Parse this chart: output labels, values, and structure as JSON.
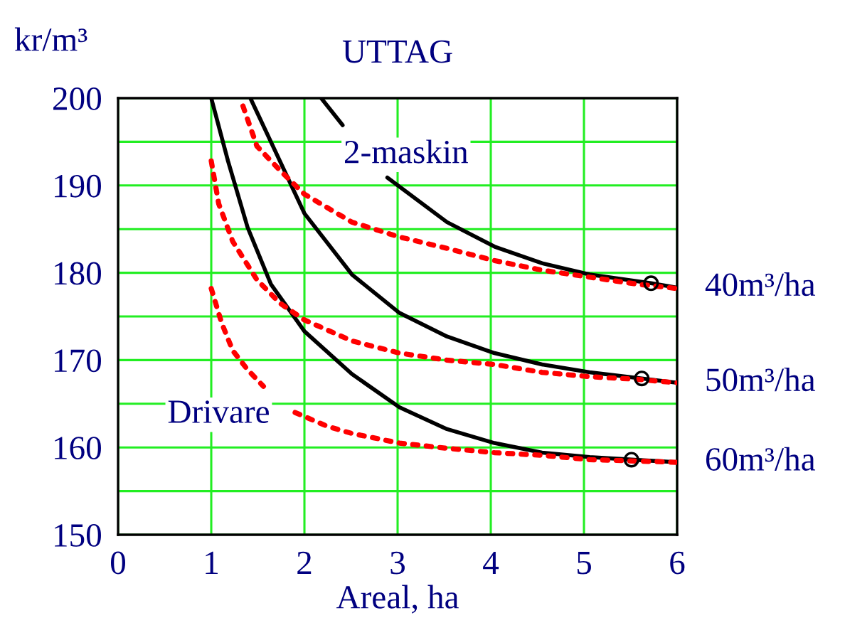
{
  "chart_data": {
    "type": "line",
    "title": "UTTAG",
    "xlabel": "Areal, ha",
    "ylabel": "kr/m³",
    "xlim": [
      0,
      6
    ],
    "xticks": [
      0,
      1,
      2,
      3,
      4,
      5,
      6
    ],
    "ylim": [
      150,
      200
    ],
    "yticks": [
      150,
      {
        "value": 155,
        "label": null
      },
      160,
      {
        "value": 165,
        "label": null
      },
      170,
      {
        "value": 175,
        "label": null
      },
      180,
      {
        "value": 185,
        "label": null
      },
      190,
      {
        "value": 195,
        "label": null
      },
      200
    ],
    "grid": true,
    "legend": false,
    "series": [
      {
        "color": "#000000",
        "line_style": "solid",
        "x": [
          2.18,
          2.41,
          2.65,
          2.89,
          3.53,
          4.04,
          4.55,
          5.06,
          5.72,
          6.0
        ],
        "values": [
          200,
          196.9,
          null,
          190.9,
          185.8,
          183.0,
          181.1,
          179.8,
          178.8,
          178.3
        ]
      },
      {
        "color": "#000000",
        "line_style": "solid",
        "x": [
          1.42,
          1.64,
          2.0,
          2.51,
          3.02,
          3.53,
          4.04,
          4.55,
          5.06,
          5.62,
          6.0
        ],
        "values": [
          200,
          195,
          186.8,
          179.8,
          175.4,
          172.7,
          170.8,
          169.5,
          168.6,
          167.9,
          167.4
        ]
      },
      {
        "color": "#000000",
        "line_style": "solid",
        "x": [
          1.0,
          1.18,
          1.39,
          1.64,
          2.0,
          2.51,
          3.02,
          3.53,
          4.04,
          4.55,
          5.06,
          5.51,
          6.0
        ],
        "values": [
          200,
          192.8,
          185.2,
          178.7,
          173.3,
          168.4,
          164.6,
          162.1,
          160.5,
          159.4,
          158.9,
          158.6,
          158.3
        ]
      },
      {
        "color": "#ff0000",
        "line_style": "dotted",
        "x": [
          1.34,
          1.49,
          1.74,
          2.0,
          2.51,
          3.02,
          3.53,
          4.04,
          4.55,
          5.06,
          5.57,
          6.0
        ],
        "values": [
          199.1,
          194.5,
          191.7,
          189.0,
          185.8,
          184.1,
          182.8,
          181.4,
          180.3,
          179.5,
          178.7,
          178.2
        ]
      },
      {
        "color": "#ff0000",
        "line_style": "dotted",
        "x": [
          1.0,
          1.08,
          1.23,
          1.49,
          1.74,
          2.0,
          2.51,
          3.02,
          3.53,
          4.04,
          4.55,
          5.06,
          5.57,
          6.0
        ],
        "values": [
          192.8,
          187.9,
          183.6,
          179.2,
          176.5,
          174.6,
          172.2,
          170.8,
          170.0,
          169.5,
          168.6,
          168.1,
          167.8,
          167.4
        ]
      },
      {
        "color": "#ff0000",
        "line_style": "dotted",
        "x": [
          1.0,
          1.11,
          1.23,
          1.39,
          1.56,
          1.73,
          1.9,
          2.25,
          2.51,
          3.02,
          3.53,
          4.04,
          4.55,
          5.06,
          6.0
        ],
        "values": [
          178.2,
          174.3,
          171.1,
          168.9,
          167.0,
          null,
          164.0,
          162.4,
          161.6,
          160.5,
          159.9,
          159.4,
          159.1,
          158.6,
          158.3
        ]
      },
      {
        "type": "scatter",
        "color": "#000000",
        "marker": "circle",
        "x": [
          5.72,
          5.62,
          5.51
        ],
        "values": [
          178.8,
          167.9,
          158.6
        ]
      }
    ],
    "annotations": [
      "2-maskin",
      "Drivare",
      "40m³/ha",
      "50m³/ha",
      "60m³/ha"
    ]
  }
}
